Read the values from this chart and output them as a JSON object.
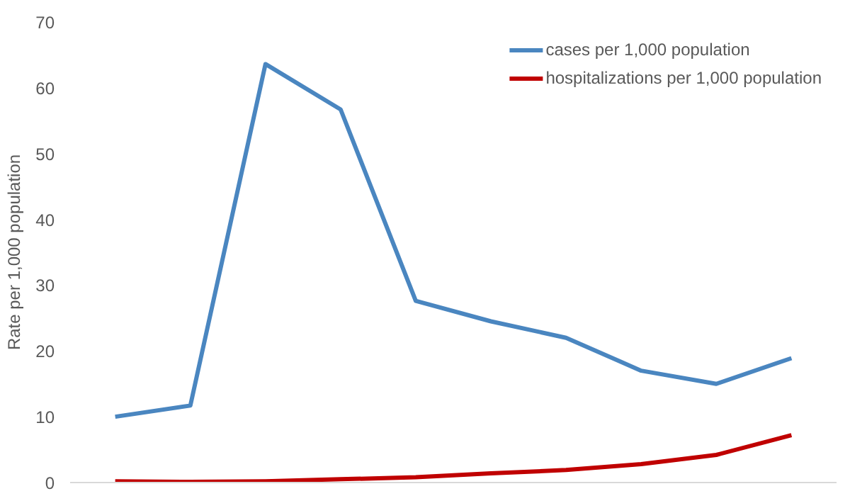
{
  "chart_data": {
    "type": "line",
    "ylabel": "Rate per 1,000 population",
    "categories": [
      null,
      null,
      null,
      null,
      null,
      null,
      null,
      null,
      null,
      null
    ],
    "ylim": [
      0,
      70
    ],
    "yticks": [
      0,
      10,
      20,
      30,
      40,
      50,
      60,
      70
    ],
    "grid": false,
    "legend": "top right",
    "marker": "none",
    "line_style": "solid",
    "series": [
      {
        "name": "cases per 1,000 population",
        "color": "#4a86c0",
        "values": [
          10,
          11.7,
          63.6,
          56.7,
          27.6,
          24.5,
          22,
          17,
          15,
          18.9
        ]
      },
      {
        "name": "hospitalizations per 1,000 population",
        "color": "#c00000",
        "values": [
          0.2,
          0.1,
          0.2,
          0.5,
          0.8,
          1.4,
          1.9,
          2.8,
          4.2,
          7.2
        ]
      }
    ]
  }
}
